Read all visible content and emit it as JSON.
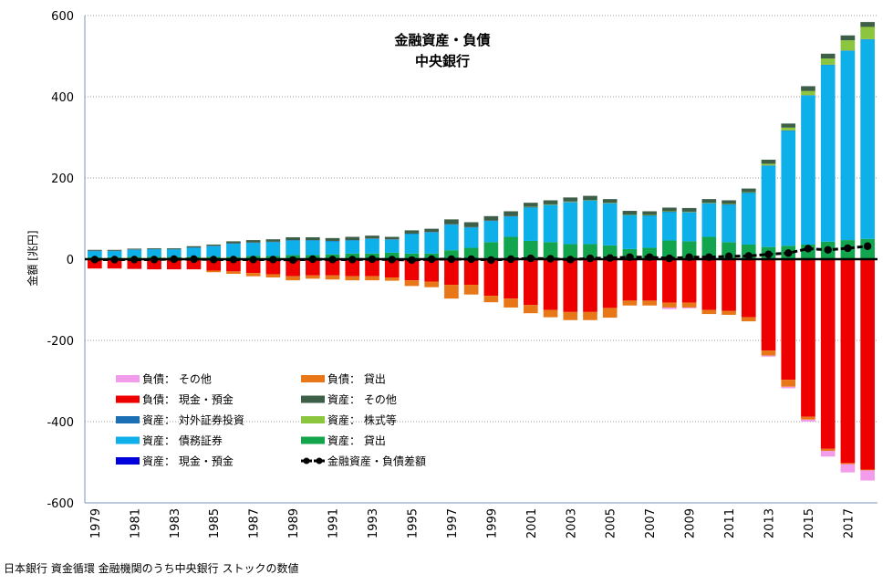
{
  "chart_data": {
    "type": "bar",
    "title": "金融資産・負債",
    "subtitle": "中央銀行",
    "ylabel": "金額 [兆円]",
    "ylim": [
      -600,
      600
    ],
    "yticks": [
      600,
      400,
      200,
      0,
      -200,
      -400,
      -600
    ],
    "x": [
      1979,
      1980,
      1981,
      1982,
      1983,
      1984,
      1985,
      1986,
      1987,
      1988,
      1989,
      1990,
      1991,
      1992,
      1993,
      1994,
      1995,
      1996,
      1997,
      1998,
      1999,
      2000,
      2001,
      2002,
      2003,
      2004,
      2005,
      2006,
      2007,
      2008,
      2009,
      2010,
      2011,
      2012,
      2013,
      2014,
      2015,
      2016,
      2017,
      2018
    ],
    "x_tick_labels": [
      "1979",
      "1981",
      "1983",
      "1985",
      "1987",
      "1989",
      "1991",
      "1993",
      "1995",
      "1997",
      "1999",
      "2001",
      "2003",
      "2005",
      "2007",
      "2009",
      "2011",
      "2013",
      "2015",
      "2017"
    ],
    "grid": "horizontal",
    "legend_position": "bottom-left",
    "series": [
      {
        "name": "資産： 現金・預金",
        "color": "#0000dd",
        "stack": "assets",
        "values": [
          0,
          0,
          0,
          0,
          0,
          0,
          0,
          0,
          0,
          0,
          0,
          0,
          0,
          0,
          0,
          0,
          0,
          0,
          0,
          0,
          0,
          0,
          0,
          0,
          0,
          0,
          0,
          0,
          0,
          0,
          0,
          0,
          0,
          0,
          0,
          0,
          0,
          0,
          0,
          0
        ]
      },
      {
        "name": "資産： 貸出",
        "color": "#12a54d",
        "stack": "assets",
        "values": [
          5,
          5,
          6,
          6,
          6,
          6,
          6,
          6,
          8,
          8,
          10,
          10,
          12,
          14,
          14,
          16,
          14,
          14,
          22,
          28,
          42,
          55,
          45,
          42,
          37,
          37,
          34,
          25,
          28,
          46,
          44,
          55,
          42,
          36,
          30,
          33,
          36,
          43,
          47,
          50
        ]
      },
      {
        "name": "資産： 債務証券",
        "color": "#0eb0ea",
        "stack": "assets",
        "values": [
          15,
          15,
          17,
          18,
          18,
          22,
          26,
          32,
          32,
          34,
          36,
          36,
          32,
          32,
          36,
          32,
          48,
          52,
          63,
          50,
          52,
          50,
          82,
          91,
          103,
          107,
          103,
          83,
          79,
          70,
          71,
          82,
          92,
          127,
          200,
          283,
          367,
          435,
          466,
          491
        ]
      },
      {
        "name": "資産： 対外証券投資",
        "color": "#1a6fb5",
        "stack": "assets",
        "values": [
          1,
          1,
          1,
          1,
          1,
          1,
          1,
          1,
          1,
          1,
          1,
          1,
          1,
          1,
          1,
          1,
          1,
          1,
          1,
          1,
          1,
          1,
          1,
          1,
          1,
          1,
          1,
          1,
          1,
          1,
          1,
          1,
          1,
          1,
          1,
          1,
          1,
          1,
          1,
          1
        ]
      },
      {
        "name": "資産： 株式等",
        "color": "#8cc63e",
        "stack": "assets",
        "values": [
          0,
          0,
          0,
          0,
          0,
          0,
          0,
          0,
          0,
          0,
          0,
          0,
          0,
          0,
          0,
          0,
          0,
          0,
          0,
          0,
          0,
          0,
          1,
          1,
          1,
          1,
          1,
          1,
          1,
          1,
          1,
          1,
          1,
          1,
          4,
          7,
          10,
          15,
          25,
          30
        ]
      },
      {
        "name": "資産： その他",
        "color": "#3d5e47",
        "stack": "assets",
        "values": [
          2,
          2,
          2,
          2,
          2,
          3,
          3,
          5,
          6,
          6,
          7,
          7,
          7,
          8,
          7,
          6,
          8,
          8,
          12,
          12,
          11,
          12,
          10,
          10,
          10,
          10,
          9,
          9,
          9,
          9,
          9,
          9,
          9,
          9,
          10,
          10,
          12,
          12,
          12,
          12
        ]
      },
      {
        "name": "負債： 現金・預金",
        "color": "#ee0000",
        "stack": "liabilities",
        "values": [
          -23,
          -23,
          -24,
          -25,
          -25,
          -25,
          -28,
          -30,
          -34,
          -37,
          -42,
          -40,
          -40,
          -42,
          -42,
          -45,
          -52,
          -55,
          -63,
          -63,
          -90,
          -97,
          -113,
          -125,
          -130,
          -130,
          -120,
          -102,
          -102,
          -107,
          -107,
          -125,
          -127,
          -143,
          -225,
          -297,
          -388,
          -467,
          -502,
          -518
        ]
      },
      {
        "name": "負債： 貸出",
        "color": "#e87817",
        "stack": "liabilities",
        "values": [
          0,
          0,
          0,
          0,
          0,
          0,
          -4,
          -6,
          -8,
          -8,
          -10,
          -8,
          -10,
          -10,
          -10,
          -8,
          -14,
          -14,
          -34,
          -24,
          -16,
          -22,
          -20,
          -18,
          -20,
          -20,
          -24,
          -12,
          -12,
          -12,
          -12,
          -10,
          -10,
          -10,
          -12,
          -17,
          -7,
          -5,
          -3,
          -2
        ]
      },
      {
        "name": "負債： その他",
        "color": "#f39cec",
        "stack": "liabilities",
        "values": [
          0,
          0,
          0,
          0,
          0,
          0,
          0,
          0,
          0,
          0,
          0,
          0,
          0,
          0,
          0,
          0,
          0,
          0,
          0,
          0,
          0,
          0,
          0,
          0,
          0,
          0,
          0,
          0,
          0,
          -4,
          -2,
          0,
          0,
          0,
          -3,
          -4,
          -5,
          -14,
          -20,
          -25
        ]
      },
      {
        "name": "金融資産・負債差額",
        "color": "#000000",
        "type": "line",
        "values": [
          -1,
          -1,
          -1,
          -1,
          0,
          0,
          -1,
          -1,
          -1,
          -1,
          -2,
          0,
          -1,
          -1,
          0,
          -1,
          -2,
          0,
          0,
          0,
          -2,
          0,
          2,
          1,
          -1,
          2,
          3,
          5,
          5,
          2,
          5,
          5,
          7,
          8,
          12,
          15,
          26,
          23,
          27,
          32
        ]
      }
    ]
  },
  "footer": {
    "note": "日本銀行 資金循環 金融機関のうち中央銀行 ストックの数値"
  }
}
